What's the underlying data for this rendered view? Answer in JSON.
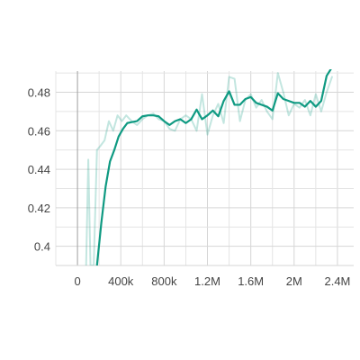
{
  "chart_data": {
    "type": "line",
    "title": "",
    "xlabel": "",
    "ylabel": "",
    "xlim": [
      -200000,
      2550000
    ],
    "ylim": [
      0.39,
      0.491
    ],
    "grid": true,
    "x_ticks": [
      0,
      400000,
      800000,
      1200000,
      1600000,
      2000000,
      2400000
    ],
    "x_tick_labels": [
      "0",
      "400k",
      "800k",
      "1.2M",
      "1.6M",
      "2M",
      "2.4M"
    ],
    "y_ticks": [
      0.4,
      0.42,
      0.44,
      0.46,
      0.48
    ],
    "y_tick_labels": [
      "0.4",
      "0.42",
      "0.44",
      "0.46",
      "0.48"
    ],
    "colors": {
      "smoothed": "#0f9a82",
      "raw": "#0f9a82"
    },
    "series": [
      {
        "x": [
          80000,
          100000,
          120000,
          150000,
          180000,
          210000,
          250000,
          290000,
          330000,
          370000,
          410000,
          450000,
          500000,
          550000,
          600000,
          650000,
          700000,
          750000,
          800000,
          850000,
          900000,
          950000,
          1000000,
          1050000,
          1100000,
          1150000,
          1200000,
          1250000,
          1300000,
          1350000,
          1400000,
          1450000,
          1500000,
          1550000,
          1600000,
          1650000,
          1700000,
          1750000,
          1800000,
          1850000,
          1900000,
          1950000,
          2000000,
          2050000,
          2100000,
          2150000,
          2200000,
          2250000,
          2300000,
          2350000
        ],
        "values": [
          0.39,
          0.445,
          0.39,
          0.39,
          0.45,
          0.452,
          0.455,
          0.465,
          0.46,
          0.468,
          0.465,
          0.468,
          0.465,
          0.463,
          0.466,
          0.468,
          0.469,
          0.466,
          0.465,
          0.461,
          0.46,
          0.466,
          0.468,
          0.466,
          0.46,
          0.479,
          0.458,
          0.468,
          0.474,
          0.464,
          0.488,
          0.487,
          0.465,
          0.476,
          0.479,
          0.472,
          0.476,
          0.47,
          0.466,
          0.49,
          0.48,
          0.468,
          0.474,
          0.472,
          0.476,
          0.468,
          0.479,
          0.47,
          0.48,
          0.488
        ]
      },
      {
        "x": [
          180000,
          220000,
          260000,
          300000,
          340000,
          380000,
          420000,
          460000,
          500000,
          550000,
          600000,
          650000,
          700000,
          750000,
          800000,
          850000,
          900000,
          950000,
          1000000,
          1050000,
          1100000,
          1150000,
          1200000,
          1250000,
          1300000,
          1350000,
          1400000,
          1450000,
          1500000,
          1550000,
          1600000,
          1650000,
          1700000,
          1750000,
          1800000,
          1850000,
          1900000,
          1950000,
          2000000,
          2050000,
          2100000,
          2150000,
          2200000,
          2250000,
          2300000,
          2350000
        ],
        "values": [
          0.39,
          0.412,
          0.431,
          0.444,
          0.45,
          0.457,
          0.461,
          0.464,
          0.4645,
          0.465,
          0.4675,
          0.468,
          0.468,
          0.4675,
          0.465,
          0.463,
          0.465,
          0.466,
          0.464,
          0.466,
          0.471,
          0.466,
          0.468,
          0.4705,
          0.4675,
          0.4755,
          0.4805,
          0.4735,
          0.4735,
          0.4765,
          0.4775,
          0.4745,
          0.4735,
          0.4725,
          0.4705,
          0.4795,
          0.4765,
          0.4755,
          0.4745,
          0.4745,
          0.4725,
          0.4755,
          0.4725,
          0.4755,
          0.4885,
          0.493
        ]
      }
    ]
  }
}
